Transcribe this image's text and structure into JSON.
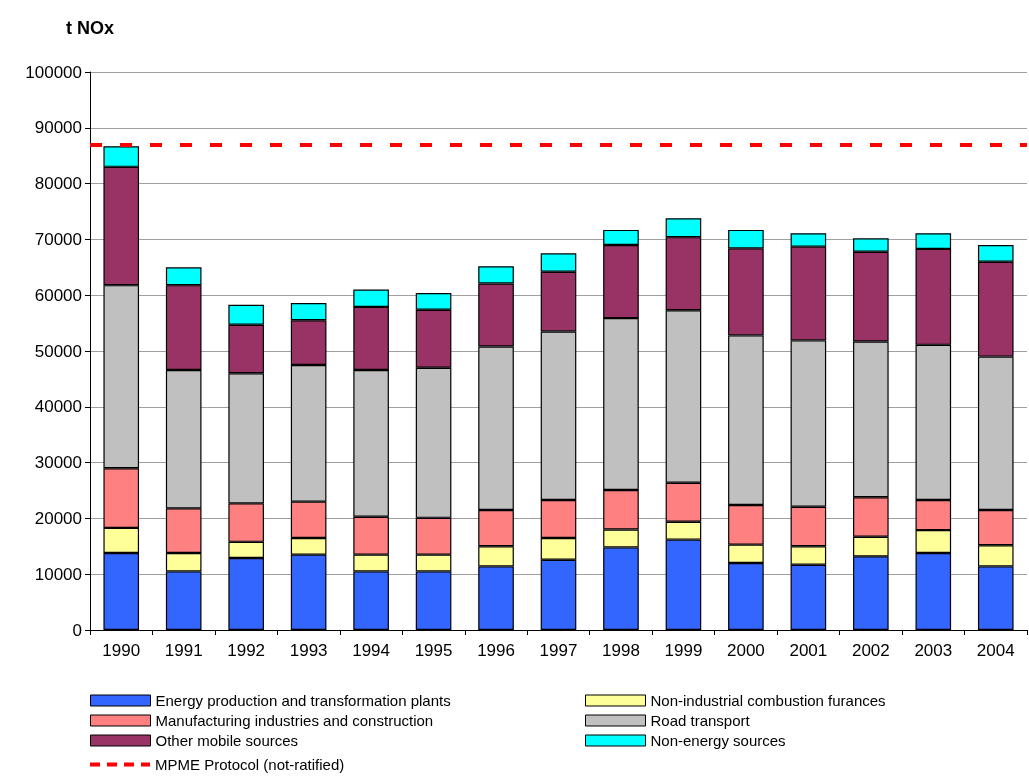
{
  "chart_data": {
    "type": "bar",
    "ylabel": "t NOx",
    "stacked": true,
    "categories": [
      "1990",
      "1991",
      "1992",
      "1993",
      "1994",
      "1995",
      "1996",
      "1997",
      "1998",
      "1999",
      "2000",
      "2001",
      "2002",
      "2003",
      "2004"
    ],
    "series": [
      {
        "name": "Energy production and transformation plants",
        "color": "#3366ff",
        "values": [
          13800,
          10500,
          12900,
          13500,
          10500,
          10500,
          11400,
          12600,
          14800,
          16200,
          12000,
          11700,
          13200,
          13800,
          11400
        ]
      },
      {
        "name": "Non-industrial combustion furances",
        "color": "#ffff99",
        "values": [
          4500,
          3300,
          2900,
          3000,
          3000,
          3000,
          3600,
          3900,
          3200,
          3200,
          3300,
          3300,
          3500,
          4100,
          3800
        ]
      },
      {
        "name": "Manufacturing industries and construction",
        "color": "#ff8080",
        "values": [
          10700,
          8000,
          6900,
          6500,
          6800,
          6600,
          6500,
          6800,
          7100,
          7000,
          7100,
          7100,
          7100,
          5400,
          6300
        ]
      },
      {
        "name": "Road transport",
        "color": "#c0c0c0",
        "values": [
          32800,
          24800,
          23300,
          24500,
          26300,
          26900,
          29300,
          30200,
          30800,
          30900,
          30400,
          29800,
          27900,
          27800,
          27500
        ]
      },
      {
        "name": "Other mobile sources",
        "color": "#993366",
        "values": [
          21200,
          15200,
          8700,
          8000,
          11300,
          10400,
          11300,
          10700,
          13100,
          13100,
          15600,
          16800,
          16100,
          17200,
          17000
        ]
      },
      {
        "name": "Non-energy sources",
        "color": "#00ffff",
        "values": [
          3700,
          3200,
          3600,
          3100,
          3100,
          3000,
          3100,
          3300,
          2700,
          3400,
          3300,
          2400,
          2400,
          2800,
          3000
        ]
      }
    ],
    "ylim": [
      0,
      100000
    ],
    "yticks": [
      0,
      10000,
      20000,
      30000,
      40000,
      50000,
      60000,
      70000,
      80000,
      90000,
      100000
    ],
    "ref_lines": [
      {
        "axis": "y",
        "value": 87000,
        "label": "MPME Protocol (not-ratified)",
        "color": "#ff0000",
        "line_style": "dashed"
      }
    ],
    "grid": "y",
    "legend": "bottom"
  }
}
